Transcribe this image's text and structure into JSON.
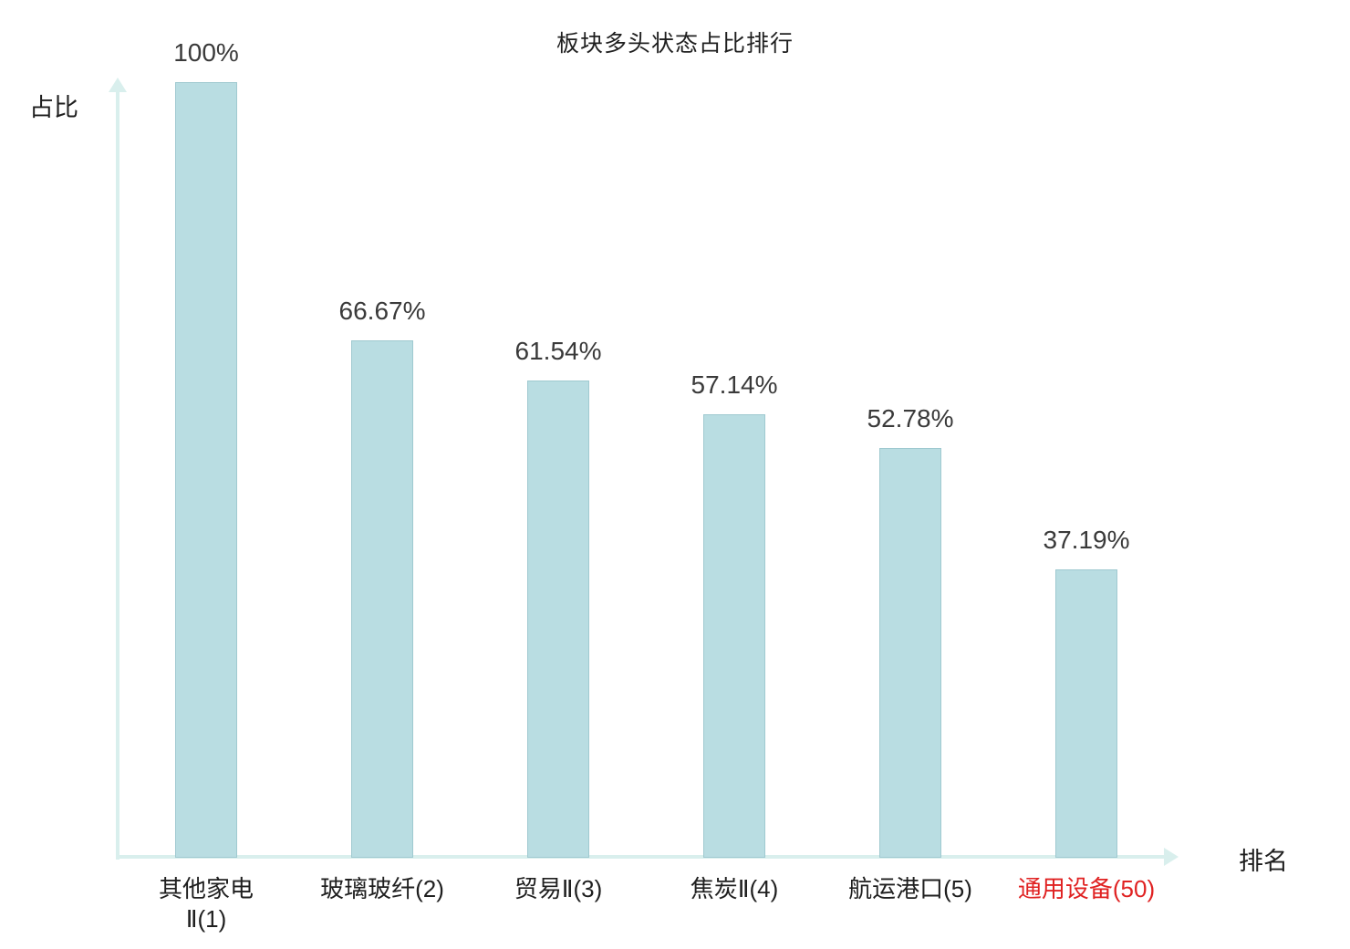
{
  "chart_data": {
    "type": "bar",
    "title": "板块多头状态占比排行",
    "xlabel": "排名",
    "ylabel": "占比",
    "categories": [
      "其他家电\nⅡ(1)",
      "玻璃玻纤(2)",
      "贸易Ⅱ(3)",
      "焦炭Ⅱ(4)",
      "航运港口(5)",
      "通用设备(50)"
    ],
    "values": [
      100,
      66.67,
      61.54,
      57.14,
      52.78,
      37.19
    ],
    "value_labels": [
      "100%",
      "66.67%",
      "61.54%",
      "57.14%",
      "52.78%",
      "37.19%"
    ],
    "highlight_index": 5,
    "ylim": [
      0,
      100
    ],
    "grid": false,
    "legend": "none",
    "colors": {
      "bar_fill": "#b9dde2",
      "bar_border": "#9fc9d0",
      "axis": "#d9efed",
      "text": "#3a3a3a",
      "highlight": "#e02222"
    }
  }
}
